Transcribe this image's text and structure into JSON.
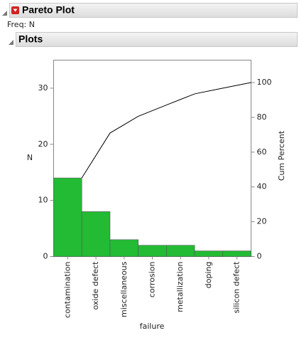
{
  "header": {
    "title": "Pareto Plot",
    "freq": "Freq: N",
    "section": "Plots"
  },
  "chart_data": {
    "type": "pareto",
    "categories": [
      "contamination",
      "oxide defect",
      "miscellaneous",
      "corrosion",
      "metallization",
      "doping",
      "silicon defect"
    ],
    "series": [
      {
        "color": "#22bb33",
        "values": [
          14,
          8,
          3,
          2,
          2,
          1,
          1
        ]
      },
      {
        "color": "#000000",
        "axis": "y2",
        "values": [
          45.2,
          71.0,
          80.6,
          87.1,
          93.5,
          96.8,
          100
        ]
      }
    ],
    "ylim": [
      0,
      35
    ],
    "yticks": [
      0,
      10,
      20,
      30
    ],
    "y2lim": [
      0,
      112.9
    ],
    "y2ticks": [
      0,
      20,
      40,
      60,
      80,
      100
    ],
    "ylabel": "N",
    "y2label": "Cum Percent",
    "xlabel": "failure"
  }
}
